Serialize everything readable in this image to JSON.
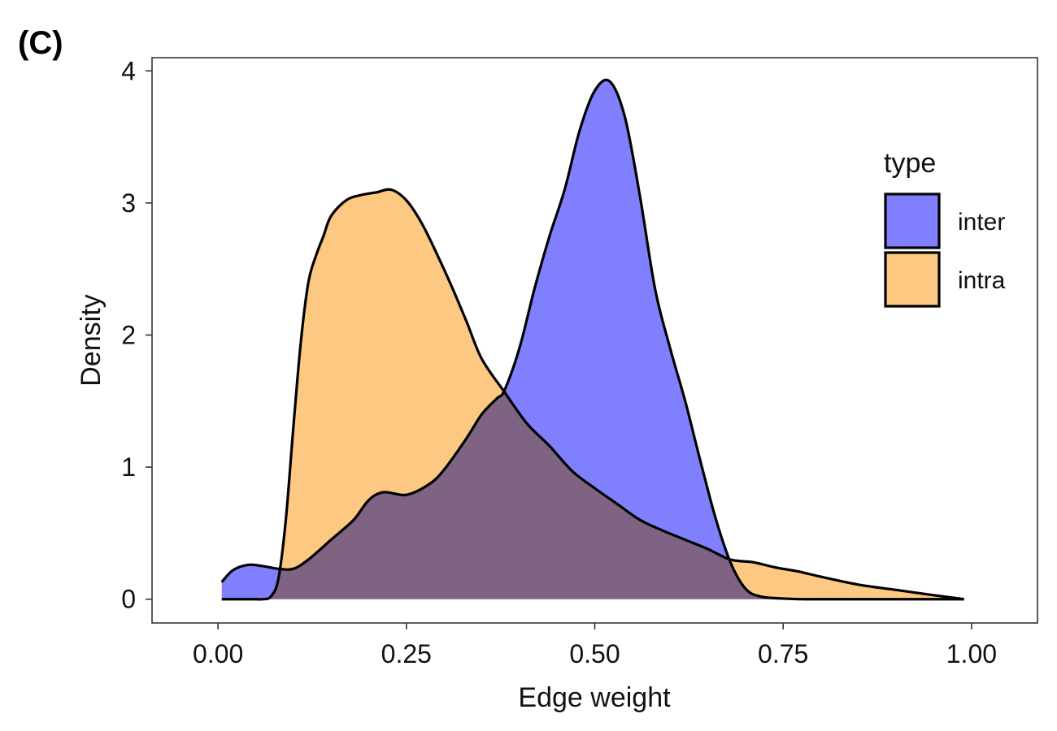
{
  "panel_label": "(C)",
  "chart_data": {
    "type": "area",
    "title": "",
    "xlabel": "Edge weight",
    "ylabel": "Density",
    "xlim": [
      -0.0875,
      1.0875
    ],
    "ylim": [
      -0.18,
      4.1
    ],
    "xticks": [
      0,
      0.25,
      0.5,
      0.75,
      1
    ],
    "xtick_labels": [
      "0.00",
      "0.25",
      "0.50",
      "0.75",
      "1.00"
    ],
    "yticks": [
      0,
      1,
      2,
      3,
      4
    ],
    "ytick_labels": [
      "0",
      "1",
      "2",
      "3",
      "4"
    ],
    "grid": false,
    "legend": {
      "title": "type",
      "position": "right"
    },
    "series": [
      {
        "name": "inter",
        "fill": "#8080FF",
        "x": [
          0.005,
          0.02,
          0.04,
          0.06,
          0.08,
          0.1,
          0.12,
          0.15,
          0.18,
          0.2,
          0.22,
          0.25,
          0.28,
          0.3,
          0.33,
          0.35,
          0.37,
          0.38,
          0.4,
          0.42,
          0.44,
          0.46,
          0.48,
          0.5,
          0.52,
          0.54,
          0.56,
          0.58,
          0.6,
          0.62,
          0.64,
          0.66,
          0.68,
          0.7,
          0.72,
          0.75,
          0.78,
          0.85,
          0.92,
          0.99
        ],
        "y": [
          0.13,
          0.22,
          0.26,
          0.25,
          0.23,
          0.23,
          0.3,
          0.45,
          0.6,
          0.75,
          0.81,
          0.79,
          0.87,
          0.98,
          1.22,
          1.4,
          1.52,
          1.58,
          1.9,
          2.35,
          2.75,
          3.1,
          3.55,
          3.85,
          3.92,
          3.65,
          3.05,
          2.35,
          1.9,
          1.5,
          1.05,
          0.62,
          0.28,
          0.08,
          0.02,
          0.005,
          0.0,
          0.0,
          0.0,
          0.0
        ]
      },
      {
        "name": "intra",
        "fill": "#FCC882",
        "x": [
          0.005,
          0.03,
          0.05,
          0.06,
          0.07,
          0.08,
          0.09,
          0.1,
          0.11,
          0.12,
          0.13,
          0.14,
          0.15,
          0.17,
          0.19,
          0.21,
          0.23,
          0.25,
          0.27,
          0.29,
          0.31,
          0.33,
          0.35,
          0.38,
          0.41,
          0.44,
          0.47,
          0.5,
          0.53,
          0.56,
          0.59,
          0.62,
          0.65,
          0.68,
          0.71,
          0.74,
          0.77,
          0.8,
          0.85,
          0.9,
          0.95,
          0.99
        ],
        "y": [
          0.0,
          0.0,
          0.0,
          0.0,
          0.02,
          0.15,
          0.6,
          1.3,
          1.95,
          2.4,
          2.6,
          2.75,
          2.9,
          3.02,
          3.06,
          3.08,
          3.1,
          3.02,
          2.85,
          2.62,
          2.37,
          2.1,
          1.82,
          1.57,
          1.33,
          1.16,
          0.97,
          0.84,
          0.72,
          0.6,
          0.52,
          0.45,
          0.38,
          0.3,
          0.28,
          0.24,
          0.21,
          0.17,
          0.11,
          0.07,
          0.03,
          0.0
        ]
      }
    ]
  }
}
